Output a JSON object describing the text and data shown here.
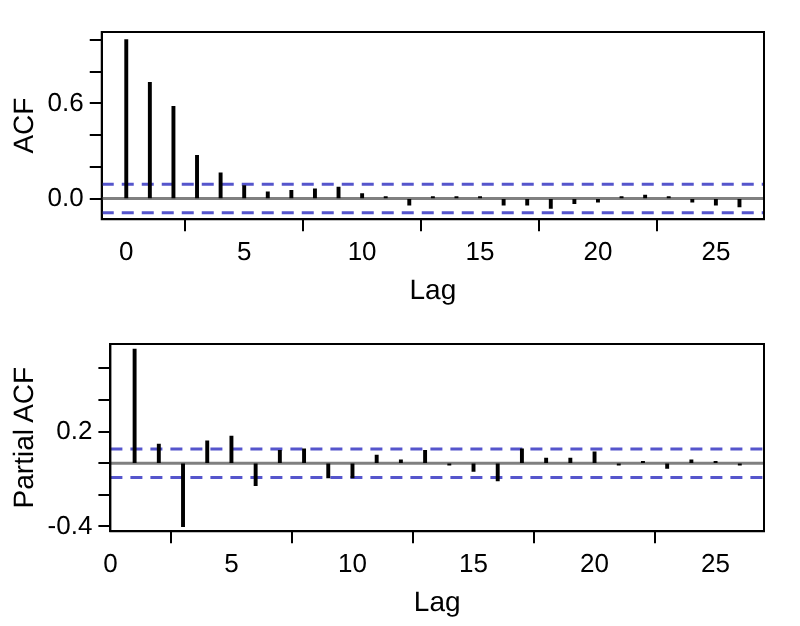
{
  "chart_data": [
    {
      "type": "bar",
      "xlabel": "Lag",
      "ylabel": "ACF",
      "color": "#000000",
      "x": [
        0,
        1,
        2,
        3,
        4,
        5,
        6,
        7,
        8,
        9,
        10,
        11,
        12,
        13,
        14,
        15,
        16,
        17,
        18,
        19,
        20,
        21,
        22,
        23,
        24,
        25,
        26
      ],
      "values": [
        1.0,
        0.73,
        0.58,
        0.27,
        0.16,
        0.08,
        0.04,
        0.05,
        0.06,
        0.07,
        0.03,
        0.01,
        -0.04,
        0.01,
        0.01,
        0.01,
        -0.04,
        -0.04,
        -0.06,
        -0.03,
        -0.02,
        0.01,
        0.02,
        0.01,
        -0.02,
        -0.04,
        -0.05
      ],
      "xlim": [
        -1.04,
        27.04
      ],
      "xticks": [
        0,
        5,
        10,
        15,
        20,
        25
      ],
      "ylim": [
        -0.13,
        1.05
      ],
      "yticks": [
        {
          "value": 0,
          "label": "0.0"
        },
        {
          "value": 0.2,
          "label": null
        },
        {
          "value": 0.4,
          "label": null
        },
        0.6,
        {
          "value": 0.8,
          "label": null
        },
        {
          "value": 1.0,
          "label": null
        }
      ],
      "ref_lines": [
        {
          "axis": "y",
          "value": 0,
          "color": "#808080",
          "line_style": "solid"
        },
        {
          "axis": "y",
          "value": 0.09,
          "color": "#5555cc",
          "line_style": "dashed"
        },
        {
          "axis": "y",
          "value": -0.09,
          "color": "#5555cc",
          "line_style": "dashed"
        }
      ]
    },
    {
      "type": "bar",
      "xlabel": "Lag",
      "ylabel": "Partial ACF",
      "color": "#000000",
      "x": [
        1,
        2,
        3,
        4,
        5,
        6,
        7,
        8,
        9,
        10,
        11,
        12,
        13,
        14,
        15,
        16,
        17,
        18,
        19,
        20,
        21,
        22,
        23,
        24,
        25,
        26
      ],
      "values": [
        0.72,
        0.12,
        -0.4,
        0.14,
        0.17,
        -0.14,
        0.08,
        0.09,
        -0.09,
        -0.09,
        0.05,
        0.02,
        0.08,
        -0.01,
        -0.05,
        -0.11,
        0.09,
        0.03,
        0.03,
        0.07,
        -0.01,
        0.01,
        -0.03,
        0.02,
        0.01,
        -0.01
      ],
      "xlim": [
        0,
        27
      ],
      "xticks": [
        0,
        5,
        10,
        15,
        20,
        25
      ],
      "ylim": [
        -0.43,
        0.755
      ],
      "yticks": [
        {
          "value": -0.4,
          "label": "-0.4"
        },
        {
          "value": -0.2,
          "label": null
        },
        {
          "value": 0,
          "label": null
        },
        0.2,
        {
          "value": 0.4,
          "label": null
        },
        {
          "value": 0.6,
          "label": null
        }
      ],
      "ref_lines": [
        {
          "axis": "y",
          "value": 0,
          "color": "#808080",
          "line_style": "solid"
        },
        {
          "axis": "y",
          "value": 0.09,
          "color": "#5555cc",
          "line_style": "dashed"
        },
        {
          "axis": "y",
          "value": -0.09,
          "color": "#5555cc",
          "line_style": "dashed"
        }
      ]
    }
  ]
}
